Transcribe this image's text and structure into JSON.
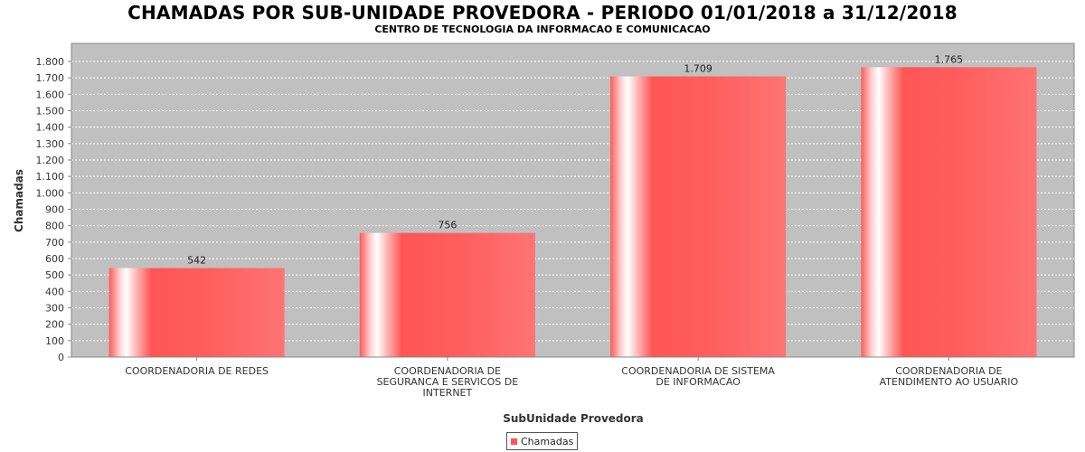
{
  "title": "CHAMADAS POR SUB-UNIDADE PROVEDORA - PERIODO 01/01/2018 a 31/12/2018",
  "subtitle": "CENTRO DE TECNOLOGIA DA INFORMACAO E COMUNICACAO",
  "colors": {
    "bar": "#ff5555",
    "plot_background": "#c0c0c0"
  },
  "chart_data": {
    "type": "bar",
    "categories": [
      [
        "COORDENADORIA DE REDES"
      ],
      [
        "COORDENADORIA DE",
        "SEGURANCA E SERVICOS DE",
        "INTERNET"
      ],
      [
        "COORDENADORIA DE SISTEMA",
        "DE INFORMACAO"
      ],
      [
        "COORDENADORIA DE",
        "ATENDIMENTO AO USUARIO"
      ]
    ],
    "series": [
      {
        "name": "Chamadas",
        "values": [
          542,
          756,
          1709,
          1765
        ]
      }
    ],
    "data_labels": [
      "542",
      "756",
      "1.709",
      "1.765"
    ],
    "xlabel": "SubUnidade Provedora",
    "ylabel": "Chamadas",
    "ylim": [
      0,
      1910
    ],
    "yticks": [
      0,
      100,
      200,
      300,
      400,
      500,
      600,
      700,
      800,
      900,
      1000,
      1100,
      1200,
      1300,
      1400,
      1500,
      1600,
      1700,
      1800
    ],
    "ytick_labels": [
      "0",
      "100",
      "200",
      "300",
      "400",
      "500",
      "600",
      "700",
      "800",
      "900",
      "1.000",
      "1.100",
      "1.200",
      "1.300",
      "1.400",
      "1.500",
      "1.600",
      "1.700",
      "1.800"
    ],
    "grid": true,
    "legend_position": "bottom-center"
  }
}
